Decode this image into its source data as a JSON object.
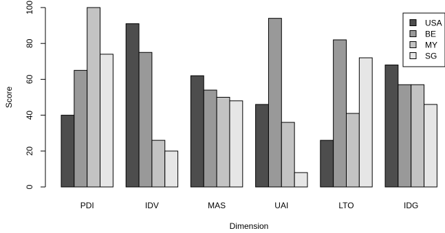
{
  "chart_data": {
    "type": "bar",
    "title": "",
    "xlabel": "Dimension",
    "ylabel": "Score",
    "categories": [
      "PDI",
      "IDV",
      "MAS",
      "UAI",
      "LTO",
      "IDG"
    ],
    "yticks": [
      0,
      20,
      40,
      60,
      80,
      100
    ],
    "ylim": [
      0,
      100
    ],
    "grid": false,
    "legend_position": "top-right",
    "series": [
      {
        "name": "USA",
        "color": "#4d4d4d",
        "values": [
          40,
          91,
          62,
          46,
          26,
          68
        ]
      },
      {
        "name": "BE",
        "color": "#999999",
        "values": [
          65,
          75,
          54,
          94,
          82,
          57
        ]
      },
      {
        "name": "MY",
        "color": "#c3c3c3",
        "values": [
          100,
          26,
          50,
          36,
          41,
          57
        ]
      },
      {
        "name": "SG",
        "color": "#e6e6e6",
        "values": [
          74,
          20,
          48,
          8,
          72,
          46
        ]
      }
    ]
  }
}
